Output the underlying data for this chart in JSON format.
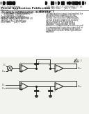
{
  "page_bg": "#f0f0ec",
  "white": "#ffffff",
  "text_color": "#2a2a2a",
  "line_color": "#1a1a1a",
  "gray": "#888888",
  "header": {
    "col1_lines": [
      [
        "(12) United States",
        2.3
      ],
      [
        "Patent Application Publication",
        3.0
      ],
      [
        "Nguyen",
        2.3
      ]
    ],
    "col2_lines": [
      [
        "(10) Pub. No.: US 2005/0007177 A1",
        2.2
      ],
      [
        "(43) Pub. Date:      Jan. 1, 2005",
        2.2
      ]
    ]
  },
  "meta": [
    [
      "(54)",
      "(54) AHUJA COMPENSATION CIRCUIT FOR",
      2.1
    ],
    [
      "",
      "      OPERATIONAL AMPLIFIER",
      2.1
    ],
    [
      "(76)",
      "(76) Inventor:  Chinh Nguyen, Longmont, CO (US)",
      2.1
    ],
    [
      "",
      "Correspondence Address:",
      2.1
    ],
    [
      "",
      "SILICON LABORATORIES INC.",
      2.0
    ],
    [
      "",
      "4635 BOSTON LN AUSTIN, TX 78735",
      2.0
    ],
    [
      "(21)",
      "(21) Appl. No.: 10/615,608",
      2.1
    ],
    [
      "(22)",
      "(22) Filed:     Jan. 9, 2003",
      2.1
    ]
  ],
  "abstract_title": "ABSTRACT",
  "abstract_text": "A compensation circuit and method for an operational amplifier circuit includes a cascode compensation circuit. The cascode compensation circuit provides improved stability, speed, and power dissipation characteristics. An operational amplifier compensation circuit includes a compensation transistor and a compensation capacitor connected in series between an output node and a compensation node of the operational amplifier.",
  "fig_label": "FIG. 1"
}
